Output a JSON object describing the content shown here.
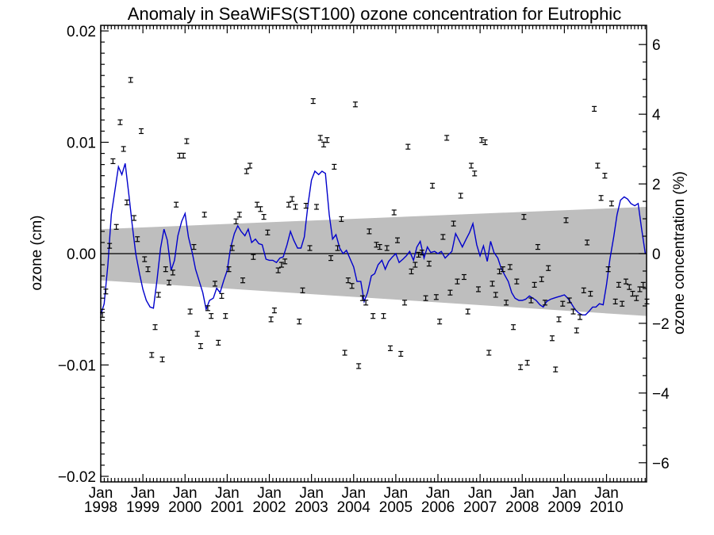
{
  "chart_data": {
    "type": "scatter",
    "title": "Anomaly in SeaWiFS(ST100) ozone concentration for Eutrophic",
    "ylabel": "ozone (cm)",
    "ylabel_right": "ozone concentration (%)",
    "xlim": [
      1998.0,
      2010.95
    ],
    "ylim": [
      -0.0205,
      0.0205
    ],
    "ylim_right": [
      -6.55,
      6.55
    ],
    "y_ticks": [
      -0.02,
      -0.01,
      0.0,
      0.01,
      0.02
    ],
    "y_tick_labels": [
      "−0.02",
      "−0.01",
      "0.00",
      "0.01",
      "0.02"
    ],
    "y_ticks_right": [
      -6,
      -4,
      -2,
      0,
      2,
      4,
      6
    ],
    "y_tick_labels_right": [
      "−6",
      "−4",
      "−2",
      "0",
      "2",
      "4",
      "6"
    ],
    "x_ticks": [
      1998,
      1999,
      2000,
      2001,
      2002,
      2003,
      2004,
      2005,
      2006,
      2007,
      2008,
      2009,
      2010
    ],
    "x_tick_month": "Jan",
    "x_tick_years": [
      "1998",
      "1999",
      "2000",
      "2001",
      "2002",
      "2003",
      "2004",
      "2005",
      "2006",
      "2007",
      "2008",
      "2009",
      "2010"
    ],
    "colors": {
      "smoothed_line": "#0000cc",
      "trend_band": "#bebebe",
      "points": "#000000",
      "zero_line": "#000000"
    },
    "trend_band": {
      "x": [
        1998.0,
        2010.95
      ],
      "upper": [
        0.0022,
        0.0042
      ],
      "lower": [
        -0.0024,
        -0.0056
      ]
    },
    "zero_line": 0.0,
    "series": [
      {
        "type": "errorbar",
        "x": [
          1998.04,
          1998.12,
          1998.21,
          1998.29,
          1998.37,
          1998.46,
          1998.54,
          1998.62,
          1998.71,
          1998.79,
          1998.87,
          1998.96,
          1999.04,
          1999.12,
          1999.21,
          1999.29,
          1999.37,
          1999.46,
          1999.54,
          1999.62,
          1999.71,
          1999.79,
          1999.87,
          1999.96,
          2000.04,
          2000.12,
          2000.21,
          2000.29,
          2000.37,
          2000.46,
          2000.54,
          2000.62,
          2000.71,
          2000.79,
          2000.87,
          2000.96,
          2001.04,
          2001.12,
          2001.21,
          2001.29,
          2001.37,
          2001.46,
          2001.54,
          2001.62,
          2001.71,
          2001.79,
          2001.87,
          2001.96,
          2002.04,
          2002.12,
          2002.21,
          2002.29,
          2002.37,
          2002.46,
          2002.54,
          2002.62,
          2002.71,
          2002.79,
          2002.87,
          2002.96,
          2003.04,
          2003.12,
          2003.21,
          2003.29,
          2003.37,
          2003.46,
          2003.54,
          2003.62,
          2003.71,
          2003.79,
          2003.87,
          2003.96,
          2004.04,
          2004.12,
          2004.21,
          2004.29,
          2004.37,
          2004.46,
          2004.54,
          2004.62,
          2004.71,
          2004.79,
          2004.87,
          2004.96,
          2005.04,
          2005.12,
          2005.21,
          2005.29,
          2005.37,
          2005.46,
          2005.54,
          2005.62,
          2005.71,
          2005.79,
          2005.87,
          2005.96,
          2006.04,
          2006.12,
          2006.21,
          2006.29,
          2006.37,
          2006.46,
          2006.54,
          2006.62,
          2006.71,
          2006.79,
          2006.87,
          2006.96,
          2007.04,
          2007.12,
          2007.21,
          2007.29,
          2007.37,
          2007.46,
          2007.54,
          2007.62,
          2007.71,
          2007.79,
          2007.87,
          2007.96,
          2008.04,
          2008.12,
          2008.21,
          2008.29,
          2008.37,
          2008.46,
          2008.54,
          2008.62,
          2008.71,
          2008.79,
          2008.87,
          2008.96,
          2009.04,
          2009.12,
          2009.21,
          2009.29,
          2009.37,
          2009.46,
          2009.54,
          2009.62,
          2009.71,
          2009.79,
          2009.87,
          2009.96,
          2010.04,
          2010.12,
          2010.21,
          2010.29,
          2010.37,
          2010.46,
          2010.54,
          2010.62,
          2010.71,
          2010.79,
          2010.87,
          2010.96
        ],
        "y": [
          -0.0055,
          -0.0034,
          0.0007,
          0.0083,
          0.0024,
          0.0118,
          0.0094,
          0.0046,
          0.0156,
          0.0032,
          0.0013,
          0.011,
          -0.0005,
          -0.0014,
          -0.0091,
          -0.0066,
          -0.0037,
          -0.0095,
          -0.0014,
          -0.0026,
          -0.0017,
          0.0044,
          0.0088,
          0.0088,
          0.0101,
          -0.0052,
          0.0006,
          -0.0072,
          -0.0083,
          0.0035,
          -0.0049,
          -0.0056,
          -0.0027,
          -0.008,
          -0.0038,
          -0.0056,
          -0.0014,
          0.0005,
          0.0029,
          0.0035,
          -0.0024,
          0.0074,
          0.0079,
          -0.0003,
          0.0044,
          0.004,
          0.0033,
          0.0019,
          -0.0059,
          -0.0051,
          -0.0015,
          -0.001,
          -0.0007,
          0.0044,
          0.0049,
          0.0042,
          -0.0061,
          -0.0033,
          0.0043,
          0.0005,
          0.0137,
          0.0042,
          0.0104,
          0.0098,
          0.0102,
          -0.0004,
          0.0078,
          0.0005,
          0.0031,
          -0.0089,
          -0.0024,
          -0.0029,
          0.0134,
          -0.0101,
          -0.004,
          -0.0044,
          0.002,
          -0.0056,
          0.0008,
          0.0006,
          -0.0056,
          0.0005,
          -0.0085,
          0.0037,
          0.0012,
          -0.009,
          -0.0044,
          0.0096,
          -0.0016,
          -0.001,
          -0.0001,
          0.0001,
          -0.004,
          -0.0009,
          0.0061,
          -0.0039,
          -0.0061,
          0.0015,
          0.0104,
          -0.0035,
          0.0027,
          -0.0025,
          0.0052,
          -0.0021,
          -0.0052,
          0.0079,
          0.0072,
          -0.0032,
          0.0102,
          0.01,
          -0.0089,
          -0.0027,
          -0.0037,
          -0.0016,
          -0.0014,
          -0.0044,
          -0.0012,
          -0.0066,
          -0.0025,
          -0.0102,
          0.0033,
          -0.0098,
          -0.0042,
          -0.0028,
          0.0006,
          -0.0023,
          -0.0044,
          -0.0013,
          -0.0076,
          -0.0104,
          -0.0059,
          -0.0045,
          0.003,
          -0.0042,
          -0.0052,
          -0.0069,
          -0.0057,
          -0.0033,
          0.001,
          -0.0036,
          0.013,
          0.0079,
          0.005,
          0.007,
          -0.0014,
          0.0045,
          -0.0043,
          -0.0028,
          -0.0045,
          -0.0025,
          -0.003,
          -0.0036,
          -0.004,
          -0.0032,
          -0.0028,
          -0.0043
        ],
        "count": 156
      },
      {
        "type": "line",
        "x": [
          1998.0,
          1998.08,
          1998.17,
          1998.25,
          1998.33,
          1998.42,
          1998.5,
          1998.58,
          1998.67,
          1998.75,
          1998.83,
          1998.92,
          1999.0,
          1999.08,
          1999.17,
          1999.25,
          1999.33,
          1999.42,
          1999.5,
          1999.58,
          1999.67,
          1999.75,
          1999.83,
          1999.92,
          2000.0,
          2000.08,
          2000.17,
          2000.25,
          2000.33,
          2000.42,
          2000.5,
          2000.58,
          2000.67,
          2000.75,
          2000.83,
          2000.92,
          2001.0,
          2001.08,
          2001.17,
          2001.25,
          2001.33,
          2001.42,
          2001.5,
          2001.58,
          2001.67,
          2001.75,
          2001.83,
          2001.92,
          2002.0,
          2002.08,
          2002.17,
          2002.25,
          2002.33,
          2002.42,
          2002.5,
          2002.58,
          2002.67,
          2002.75,
          2002.83,
          2002.92,
          2003.0,
          2003.08,
          2003.17,
          2003.25,
          2003.33,
          2003.42,
          2003.5,
          2003.58,
          2003.67,
          2003.75,
          2003.83,
          2003.92,
          2004.0,
          2004.08,
          2004.17,
          2004.25,
          2004.33,
          2004.42,
          2004.5,
          2004.58,
          2004.67,
          2004.75,
          2004.83,
          2004.92,
          2005.0,
          2005.08,
          2005.17,
          2005.25,
          2005.33,
          2005.42,
          2005.5,
          2005.58,
          2005.67,
          2005.75,
          2005.83,
          2005.92,
          2006.0,
          2006.08,
          2006.17,
          2006.25,
          2006.33,
          2006.42,
          2006.5,
          2006.58,
          2006.67,
          2006.75,
          2006.83,
          2006.92,
          2007.0,
          2007.08,
          2007.17,
          2007.25,
          2007.33,
          2007.42,
          2007.5,
          2007.58,
          2007.67,
          2007.75,
          2007.83,
          2007.92,
          2008.0,
          2008.08,
          2008.17,
          2008.25,
          2008.33,
          2008.42,
          2008.5,
          2008.58,
          2008.67,
          2008.75,
          2008.83,
          2008.92,
          2009.0,
          2009.08,
          2009.17,
          2009.25,
          2009.33,
          2009.42,
          2009.5,
          2009.58,
          2009.67,
          2009.75,
          2009.83,
          2009.92,
          2010.0,
          2010.08,
          2010.17,
          2010.25,
          2010.33,
          2010.42,
          2010.5,
          2010.58,
          2010.67,
          2010.75,
          2010.83,
          2010.92
        ],
        "y": [
          -0.0055,
          -0.0045,
          -0.001,
          0.0035,
          0.0055,
          0.0078,
          0.0071,
          0.0081,
          0.0052,
          0.0025,
          0.0,
          -0.0018,
          -0.0032,
          -0.0042,
          -0.0048,
          -0.0049,
          -0.0025,
          0.0005,
          0.0022,
          0.0012,
          -0.0015,
          -0.0006,
          0.0016,
          0.0029,
          0.0036,
          0.0015,
          0.0001,
          -0.0014,
          -0.0024,
          -0.0035,
          -0.005,
          -0.0042,
          -0.004,
          -0.0031,
          -0.0035,
          -0.0024,
          -0.0015,
          0.0005,
          0.0018,
          0.0025,
          0.002,
          0.0016,
          0.0022,
          0.001,
          0.0013,
          0.0009,
          0.0008,
          -0.0005,
          -0.0006,
          -0.0006,
          -0.0008,
          -0.0004,
          -0.0003,
          0.0008,
          0.002,
          0.0012,
          0.0005,
          0.0005,
          0.0015,
          0.0045,
          0.0066,
          0.0074,
          0.0071,
          0.0074,
          0.0072,
          0.0035,
          0.0013,
          0.0017,
          0.0005,
          0.0,
          0.0003,
          -0.0005,
          -0.0012,
          -0.0025,
          -0.0025,
          -0.0043,
          -0.0035,
          -0.002,
          -0.0018,
          -0.001,
          -0.0006,
          -0.0014,
          -0.0007,
          -0.0003,
          0.0,
          -0.0008,
          -0.0005,
          -0.0002,
          0.0002,
          -0.0006,
          0.0006,
          0.0011,
          -0.0004,
          0.0006,
          0.0001,
          0.0002,
          0.0,
          0.0002,
          -0.0004,
          -0.0001,
          0.0002,
          0.0018,
          0.0012,
          0.0006,
          0.0013,
          0.0019,
          0.0027,
          0.0008,
          -0.0002,
          0.0007,
          -0.0007,
          0.0011,
          0.0001,
          -0.0004,
          -0.0013,
          -0.0019,
          -0.0025,
          -0.0035,
          -0.004,
          -0.0042,
          -0.0042,
          -0.0041,
          -0.0038,
          -0.004,
          -0.0042,
          -0.0046,
          -0.0048,
          -0.0043,
          -0.0041,
          -0.004,
          -0.0039,
          -0.0038,
          -0.0037,
          -0.004,
          -0.0045,
          -0.005,
          -0.0053,
          -0.0055,
          -0.0055,
          -0.0052,
          -0.0048,
          -0.0048,
          -0.0045,
          -0.0046,
          -0.0028,
          -0.0005,
          0.0015,
          0.0035,
          0.0048,
          0.0051,
          0.0049,
          0.0045,
          0.0043,
          0.0045,
          0.0023,
          0.0
        ]
      }
    ]
  }
}
